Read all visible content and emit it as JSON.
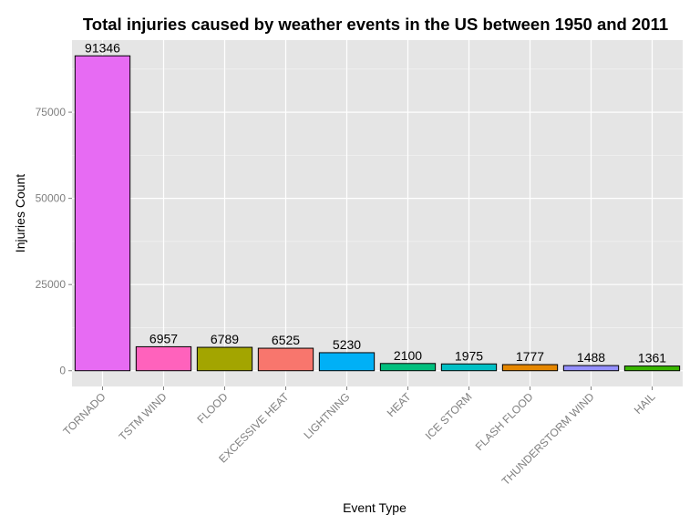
{
  "chart_data": {
    "type": "bar",
    "title": "Total injuries caused by weather events in the US between 1950 and 2011",
    "xlabel": "Event Type",
    "ylabel": "Injuries Count",
    "categories": [
      "TORNADO",
      "TSTM WIND",
      "FLOOD",
      "EXCESSIVE HEAT",
      "LIGHTNING",
      "HEAT",
      "ICE STORM",
      "FLASH FLOOD",
      "THUNDERSTORM WIND",
      "HAIL"
    ],
    "values": [
      91346,
      6957,
      6789,
      6525,
      5230,
      2100,
      1975,
      1777,
      1488,
      1361
    ],
    "colors": [
      "#E76BF3",
      "#FF62BC",
      "#A3A500",
      "#F8766D",
      "#00B0F6",
      "#00BF7D",
      "#00BFC4",
      "#E58700",
      "#9590FF",
      "#39B600"
    ],
    "yticks": [
      0,
      25000,
      50000,
      75000
    ],
    "ylim": [
      -4567,
      95913
    ],
    "grid": true,
    "panel_background": "#E5E5E5",
    "grid_color": "#FFFFFF"
  }
}
